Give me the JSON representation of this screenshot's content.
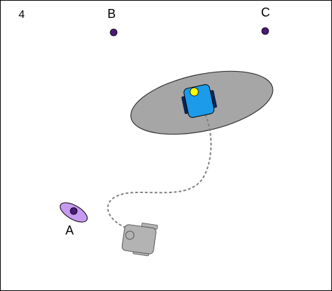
{
  "step_label": "4",
  "landmarks": [
    {
      "id": "A",
      "label": "A"
    },
    {
      "id": "B",
      "label": "B"
    },
    {
      "id": "C",
      "label": "C"
    }
  ],
  "colors": {
    "landmark_dot": "#4b1a78",
    "landmark_uncertainty_fill": "#c79bf2",
    "robot_uncertainty_fill": "#a6a6a6",
    "robot_body": "#1b9be9",
    "robot_wheels": "#0d2450",
    "robot_marker": "#ffff00",
    "ghost_robot": "#b3b3b3",
    "path": "#808080"
  }
}
